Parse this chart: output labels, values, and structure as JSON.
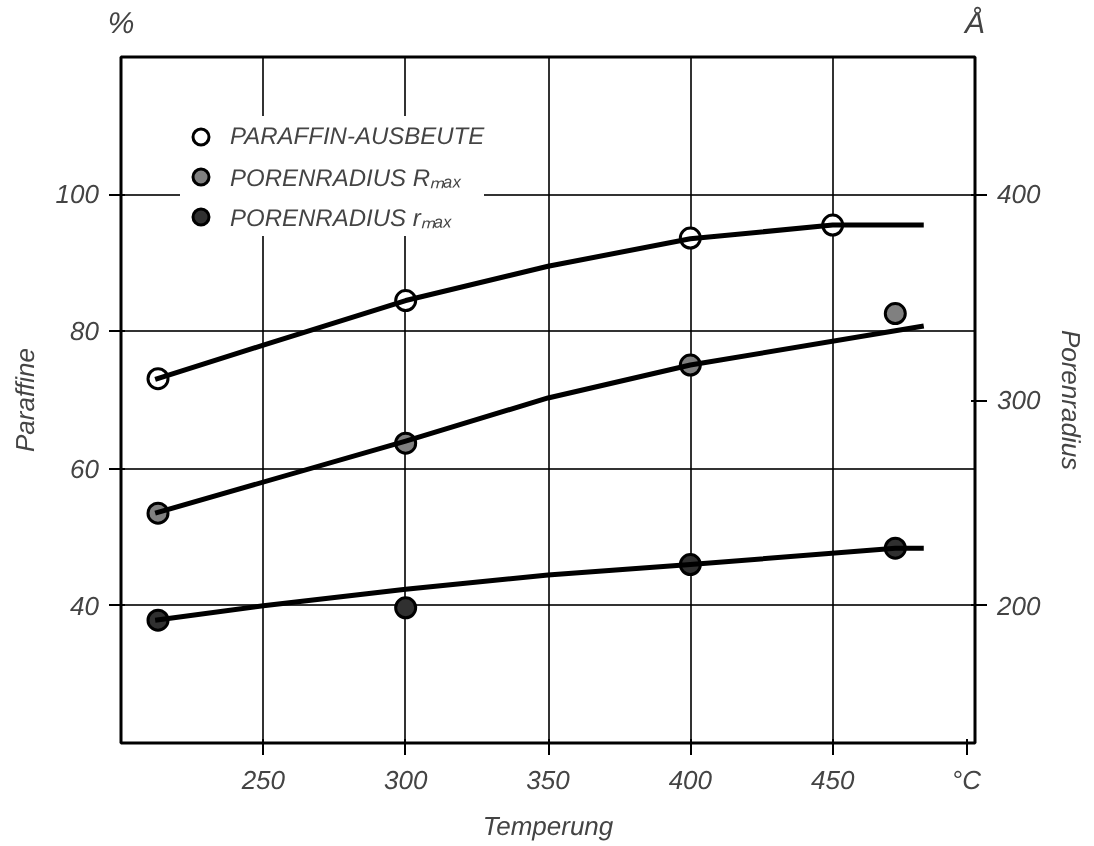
{
  "chart_data": {
    "type": "scatter",
    "xlabel": "Temperung",
    "ylabel": "Paraffine",
    "y2label": "Porenradius",
    "annotations": [
      "%",
      "Å",
      "°C"
    ],
    "xlim": [
      200,
      500
    ],
    "xticks": [
      250,
      300,
      350,
      400,
      450
    ],
    "ylim": [
      20,
      120
    ],
    "yticks": [
      40,
      60,
      80,
      100
    ],
    "y2lim": [
      133.3,
      466.7
    ],
    "y2ticks": [
      200,
      300,
      400
    ],
    "grid": true,
    "legend": "top left",
    "series": [
      {
        "name": "PARAFFIN-AUSBEUTE",
        "marker": "circle",
        "color": "#ffffff",
        "x": [
          213,
          300,
          400,
          450
        ],
        "values": [
          73.1,
          84.5,
          93.6,
          95.5
        ]
      },
      {
        "name": "PORENRADIUS Rₘₐₓ",
        "marker": "circle",
        "axis": "y2",
        "color": "#808080",
        "x": [
          213,
          300,
          400,
          472
        ],
        "values": [
          245,
          279,
          317,
          342
        ]
      },
      {
        "name": "PORENRADIUS rₘₐₓ",
        "marker": "circle",
        "axis": "y2",
        "color": "#303030",
        "x": [
          213,
          300,
          400,
          472
        ],
        "values": [
          193,
          199,
          220,
          228
        ]
      },
      {
        "type": "line",
        "color": "#000000",
        "x": [
          212,
          250,
          300,
          350,
          400,
          450,
          482
        ],
        "values": [
          73,
          78,
          84.5,
          89.5,
          93.5,
          95.5,
          95.5
        ]
      },
      {
        "type": "line",
        "axis": "y2",
        "color": "#000000",
        "x": [
          212,
          300,
          350,
          400,
          482
        ],
        "values": [
          245,
          280,
          301,
          317,
          336
        ]
      },
      {
        "type": "line",
        "axis": "y2",
        "color": "#000000",
        "x": [
          212,
          250,
          300,
          350,
          400,
          472,
          482
        ],
        "values": [
          193,
          200,
          208,
          215,
          220,
          228,
          228
        ]
      }
    ]
  }
}
